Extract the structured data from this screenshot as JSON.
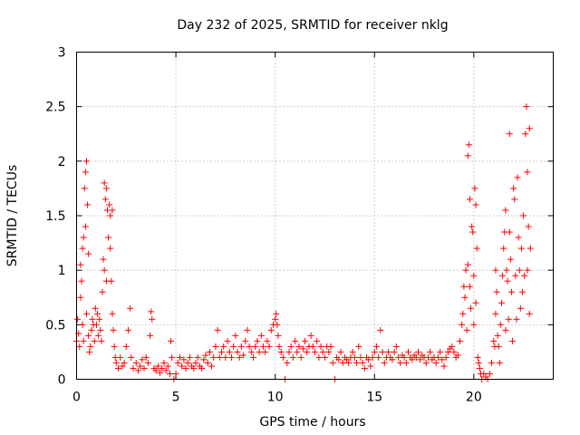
{
  "chart_data": {
    "type": "scatter",
    "title": "Day 232 of 2025, SRMTID for receiver nklg",
    "xlabel": "GPS time / hours",
    "ylabel": "SRMTID / TECUs",
    "xlim": [
      0,
      24
    ],
    "ylim": [
      0,
      3
    ],
    "xticks": [
      0,
      5,
      10,
      15,
      20
    ],
    "xtick_labels": [
      "0",
      "5",
      "10",
      "15",
      "20"
    ],
    "yticks": [
      0,
      0.5,
      1,
      1.5,
      2,
      2.5,
      3
    ],
    "ytick_labels": [
      "0",
      "0.5",
      "1",
      "1.5",
      "2",
      "2.5",
      "3"
    ],
    "grid": true,
    "marker": "+",
    "color": "#ff0000",
    "series": [
      {
        "name": "SRMTID",
        "points": [
          [
            0.0,
            0.35
          ],
          [
            0.05,
            0.55
          ],
          [
            0.1,
            0.42
          ],
          [
            0.15,
            0.3
          ],
          [
            0.2,
            0.75
          ],
          [
            0.2,
            1.05
          ],
          [
            0.25,
            0.9
          ],
          [
            0.3,
            1.2
          ],
          [
            0.3,
            0.5
          ],
          [
            0.35,
            1.3
          ],
          [
            0.35,
            0.35
          ],
          [
            0.4,
            1.75
          ],
          [
            0.45,
            1.9
          ],
          [
            0.45,
            1.4
          ],
          [
            0.5,
            2.0
          ],
          [
            0.5,
            0.6
          ],
          [
            0.55,
            1.6
          ],
          [
            0.6,
            1.15
          ],
          [
            0.6,
            0.4
          ],
          [
            0.65,
            0.25
          ],
          [
            0.7,
            0.3
          ],
          [
            0.75,
            0.45
          ],
          [
            0.8,
            0.55
          ],
          [
            0.85,
            0.5
          ],
          [
            0.9,
            0.35
          ],
          [
            0.95,
            0.65
          ],
          [
            1.0,
            0.5
          ],
          [
            1.05,
            0.6
          ],
          [
            1.1,
            0.4
          ],
          [
            1.15,
            0.55
          ],
          [
            1.2,
            0.45
          ],
          [
            1.25,
            0.35
          ],
          [
            1.3,
            0.8
          ],
          [
            1.35,
            1.1
          ],
          [
            1.4,
            1.8
          ],
          [
            1.4,
            1.0
          ],
          [
            1.45,
            1.65
          ],
          [
            1.5,
            1.75
          ],
          [
            1.5,
            0.9
          ],
          [
            1.55,
            1.55
          ],
          [
            1.6,
            1.3
          ],
          [
            1.65,
            1.6
          ],
          [
            1.7,
            1.5
          ],
          [
            1.7,
            1.2
          ],
          [
            1.75,
            0.9
          ],
          [
            1.8,
            1.55
          ],
          [
            1.8,
            0.6
          ],
          [
            1.85,
            0.45
          ],
          [
            1.9,
            0.3
          ],
          [
            1.95,
            0.2
          ],
          [
            2.0,
            0.15
          ],
          [
            2.1,
            0.1
          ],
          [
            2.2,
            0.2
          ],
          [
            2.3,
            0.12
          ],
          [
            2.4,
            0.15
          ],
          [
            2.5,
            0.3
          ],
          [
            2.6,
            0.45
          ],
          [
            2.7,
            0.65
          ],
          [
            2.75,
            0.2
          ],
          [
            2.85,
            0.1
          ],
          [
            3.0,
            0.15
          ],
          [
            3.1,
            0.08
          ],
          [
            3.2,
            0.12
          ],
          [
            3.3,
            0.18
          ],
          [
            3.4,
            0.1
          ],
          [
            3.5,
            0.2
          ],
          [
            3.6,
            0.15
          ],
          [
            3.7,
            0.4
          ],
          [
            3.75,
            0.62
          ],
          [
            3.8,
            0.55
          ],
          [
            3.9,
            0.1
          ],
          [
            4.0,
            0.08
          ],
          [
            4.1,
            0.12
          ],
          [
            4.2,
            0.06
          ],
          [
            4.3,
            0.1
          ],
          [
            4.4,
            0.15
          ],
          [
            4.5,
            0.08
          ],
          [
            4.6,
            0.12
          ],
          [
            4.7,
            0.05
          ],
          [
            4.75,
            0.35
          ],
          [
            4.8,
            0.2
          ],
          [
            4.9,
            0.0
          ],
          [
            5.0,
            0.05
          ],
          [
            5.1,
            0.15
          ],
          [
            5.2,
            0.2
          ],
          [
            5.3,
            0.12
          ],
          [
            5.4,
            0.18
          ],
          [
            5.5,
            0.1
          ],
          [
            5.6,
            0.15
          ],
          [
            5.7,
            0.2
          ],
          [
            5.8,
            0.12
          ],
          [
            5.9,
            0.1
          ],
          [
            6.0,
            0.15
          ],
          [
            6.1,
            0.2
          ],
          [
            6.2,
            0.12
          ],
          [
            6.3,
            0.1
          ],
          [
            6.4,
            0.18
          ],
          [
            6.5,
            0.22
          ],
          [
            6.6,
            0.15
          ],
          [
            6.7,
            0.25
          ],
          [
            6.8,
            0.12
          ],
          [
            6.9,
            0.2
          ],
          [
            7.0,
            0.3
          ],
          [
            7.1,
            0.45
          ],
          [
            7.2,
            0.2
          ],
          [
            7.3,
            0.25
          ],
          [
            7.4,
            0.3
          ],
          [
            7.5,
            0.2
          ],
          [
            7.6,
            0.35
          ],
          [
            7.7,
            0.25
          ],
          [
            7.8,
            0.2
          ],
          [
            7.9,
            0.3
          ],
          [
            8.0,
            0.4
          ],
          [
            8.1,
            0.25
          ],
          [
            8.2,
            0.2
          ],
          [
            8.3,
            0.3
          ],
          [
            8.4,
            0.22
          ],
          [
            8.5,
            0.35
          ],
          [
            8.6,
            0.45
          ],
          [
            8.7,
            0.3
          ],
          [
            8.8,
            0.25
          ],
          [
            8.9,
            0.2
          ],
          [
            9.0,
            0.3
          ],
          [
            9.1,
            0.35
          ],
          [
            9.2,
            0.25
          ],
          [
            9.3,
            0.4
          ],
          [
            9.4,
            0.3
          ],
          [
            9.5,
            0.25
          ],
          [
            9.6,
            0.35
          ],
          [
            9.7,
            0.3
          ],
          [
            9.8,
            0.45
          ],
          [
            9.9,
            0.5
          ],
          [
            10.0,
            0.55
          ],
          [
            10.05,
            0.6
          ],
          [
            10.1,
            0.5
          ],
          [
            10.15,
            0.4
          ],
          [
            10.2,
            0.3
          ],
          [
            10.3,
            0.25
          ],
          [
            10.4,
            0.2
          ],
          [
            10.5,
            0.0
          ],
          [
            10.6,
            0.15
          ],
          [
            10.7,
            0.25
          ],
          [
            10.8,
            0.3
          ],
          [
            10.9,
            0.2
          ],
          [
            11.0,
            0.35
          ],
          [
            11.1,
            0.25
          ],
          [
            11.2,
            0.3
          ],
          [
            11.3,
            0.2
          ],
          [
            11.4,
            0.28
          ],
          [
            11.5,
            0.35
          ],
          [
            11.6,
            0.25
          ],
          [
            11.7,
            0.3
          ],
          [
            11.8,
            0.4
          ],
          [
            11.9,
            0.3
          ],
          [
            12.0,
            0.25
          ],
          [
            12.1,
            0.35
          ],
          [
            12.2,
            0.2
          ],
          [
            12.3,
            0.3
          ],
          [
            12.4,
            0.25
          ],
          [
            12.5,
            0.2
          ],
          [
            12.6,
            0.3
          ],
          [
            12.7,
            0.25
          ],
          [
            12.8,
            0.3
          ],
          [
            12.9,
            0.15
          ],
          [
            13.0,
            0.0
          ],
          [
            13.1,
            0.2
          ],
          [
            13.2,
            0.18
          ],
          [
            13.3,
            0.25
          ],
          [
            13.4,
            0.15
          ],
          [
            13.5,
            0.2
          ],
          [
            13.6,
            0.18
          ],
          [
            13.7,
            0.15
          ],
          [
            13.8,
            0.2
          ],
          [
            13.9,
            0.25
          ],
          [
            14.0,
            0.2
          ],
          [
            14.1,
            0.15
          ],
          [
            14.2,
            0.3
          ],
          [
            14.3,
            0.2
          ],
          [
            14.4,
            0.15
          ],
          [
            14.5,
            0.1
          ],
          [
            14.6,
            0.2
          ],
          [
            14.7,
            0.18
          ],
          [
            14.8,
            0.12
          ],
          [
            14.9,
            0.2
          ],
          [
            15.0,
            0.25
          ],
          [
            15.1,
            0.3
          ],
          [
            15.2,
            0.2
          ],
          [
            15.3,
            0.45
          ],
          [
            15.4,
            0.25
          ],
          [
            15.5,
            0.15
          ],
          [
            15.6,
            0.2
          ],
          [
            15.7,
            0.25
          ],
          [
            15.8,
            0.2
          ],
          [
            15.9,
            0.18
          ],
          [
            16.0,
            0.25
          ],
          [
            16.1,
            0.3
          ],
          [
            16.2,
            0.2
          ],
          [
            16.3,
            0.15
          ],
          [
            16.4,
            0.22
          ],
          [
            16.5,
            0.2
          ],
          [
            16.6,
            0.15
          ],
          [
            16.7,
            0.25
          ],
          [
            16.8,
            0.2
          ],
          [
            16.9,
            0.18
          ],
          [
            17.0,
            0.22
          ],
          [
            17.1,
            0.2
          ],
          [
            17.2,
            0.25
          ],
          [
            17.3,
            0.18
          ],
          [
            17.4,
            0.22
          ],
          [
            17.5,
            0.2
          ],
          [
            17.6,
            0.15
          ],
          [
            17.7,
            0.2
          ],
          [
            17.8,
            0.25
          ],
          [
            17.9,
            0.18
          ],
          [
            18.0,
            0.2
          ],
          [
            18.1,
            0.15
          ],
          [
            18.2,
            0.2
          ],
          [
            18.3,
            0.25
          ],
          [
            18.4,
            0.18
          ],
          [
            18.5,
            0.12
          ],
          [
            18.6,
            0.2
          ],
          [
            18.7,
            0.25
          ],
          [
            18.8,
            0.28
          ],
          [
            18.9,
            0.3
          ],
          [
            19.0,
            0.25
          ],
          [
            19.1,
            0.2
          ],
          [
            19.2,
            0.22
          ],
          [
            19.3,
            0.35
          ],
          [
            19.4,
            0.5
          ],
          [
            19.45,
            0.6
          ],
          [
            19.5,
            0.85
          ],
          [
            19.55,
            0.75
          ],
          [
            19.6,
            1.0
          ],
          [
            19.65,
            0.45
          ],
          [
            19.7,
            2.05
          ],
          [
            19.7,
            1.05
          ],
          [
            19.75,
            2.15
          ],
          [
            19.8,
            1.65
          ],
          [
            19.8,
            0.85
          ],
          [
            19.85,
            0.65
          ],
          [
            19.9,
            1.4
          ],
          [
            19.95,
            1.35
          ],
          [
            20.0,
            0.95
          ],
          [
            20.0,
            0.5
          ],
          [
            20.05,
            1.75
          ],
          [
            20.1,
            1.6
          ],
          [
            20.1,
            0.7
          ],
          [
            20.15,
            1.2
          ],
          [
            20.2,
            0.2
          ],
          [
            20.25,
            0.15
          ],
          [
            20.3,
            0.1
          ],
          [
            20.35,
            0.05
          ],
          [
            20.4,
            0.0
          ],
          [
            20.5,
            0.05
          ],
          [
            20.6,
            0.02
          ],
          [
            20.7,
            0.0
          ],
          [
            20.8,
            0.05
          ],
          [
            20.9,
            0.15
          ],
          [
            21.0,
            0.35
          ],
          [
            21.05,
            0.3
          ],
          [
            21.1,
            0.6
          ],
          [
            21.1,
            1.0
          ],
          [
            21.15,
            0.8
          ],
          [
            21.2,
            0.4
          ],
          [
            21.25,
            0.3
          ],
          [
            21.3,
            0.15
          ],
          [
            21.35,
            0.5
          ],
          [
            21.4,
            0.7
          ],
          [
            21.45,
            0.95
          ],
          [
            21.5,
            1.2
          ],
          [
            21.55,
            1.35
          ],
          [
            21.6,
            1.55
          ],
          [
            21.6,
            0.45
          ],
          [
            21.65,
            1.0
          ],
          [
            21.7,
            0.9
          ],
          [
            21.75,
            0.55
          ],
          [
            21.8,
            2.25
          ],
          [
            21.8,
            1.35
          ],
          [
            21.85,
            1.1
          ],
          [
            21.9,
            0.8
          ],
          [
            21.95,
            0.35
          ],
          [
            22.0,
            1.75
          ],
          [
            22.05,
            1.65
          ],
          [
            22.1,
            0.95
          ],
          [
            22.15,
            0.55
          ],
          [
            22.2,
            1.85
          ],
          [
            22.25,
            1.3
          ],
          [
            22.3,
            1.0
          ],
          [
            22.35,
            0.65
          ],
          [
            22.4,
            1.2
          ],
          [
            22.45,
            0.8
          ],
          [
            22.5,
            1.5
          ],
          [
            22.55,
            0.95
          ],
          [
            22.6,
            2.25
          ],
          [
            22.65,
            2.5
          ],
          [
            22.7,
            1.9
          ],
          [
            22.7,
            1.0
          ],
          [
            22.75,
            1.4
          ],
          [
            22.8,
            0.6
          ],
          [
            22.8,
            2.3
          ],
          [
            22.85,
            1.2
          ]
        ]
      }
    ]
  }
}
